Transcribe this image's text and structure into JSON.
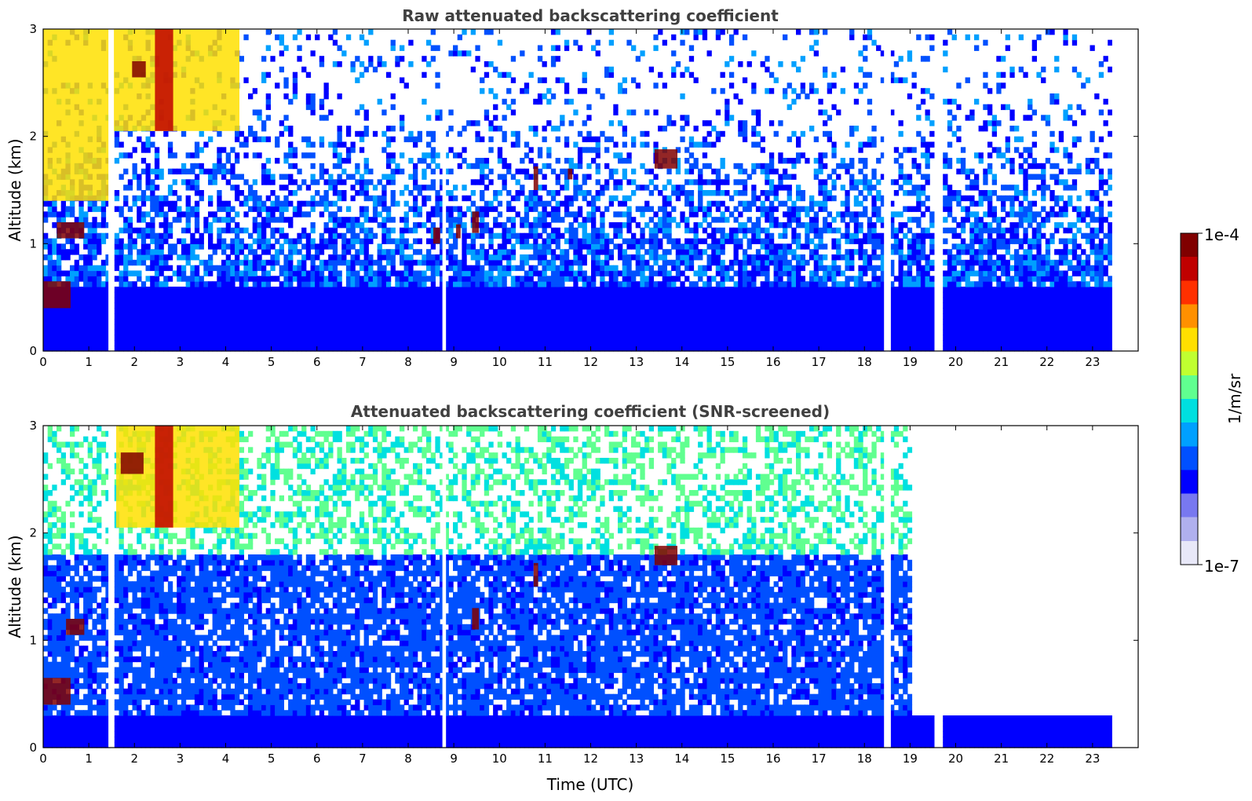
{
  "colors": {
    "background": "#ffffff",
    "title": "#404040",
    "colormap": [
      "#e8e8f8",
      "#b0b0ee",
      "#7878f0",
      "#0000ff",
      "#0050ff",
      "#00a0ff",
      "#00e0e0",
      "#60ff90",
      "#c0ff30",
      "#ffe000",
      "#ff9000",
      "#ff3000",
      "#c00000",
      "#800000"
    ]
  },
  "chart_data": [
    {
      "type": "heatmap",
      "title": "Raw attenuated backscattering coefficient",
      "xlabel": "",
      "ylabel": "Altitude (km)",
      "xlim": [
        0,
        24
      ],
      "ylim": [
        0,
        3
      ],
      "x_ticks": [
        "0",
        "1",
        "2",
        "3",
        "4",
        "5",
        "6",
        "7",
        "8",
        "9",
        "10",
        "11",
        "12",
        "13",
        "14",
        "15",
        "16",
        "17",
        "18",
        "19",
        "20",
        "21",
        "22",
        "23"
      ],
      "y_ticks": [
        "0",
        "1",
        "2",
        "3"
      ],
      "data_end_time": 23.43,
      "gaps": [
        [
          1.43,
          1.55
        ],
        [
          8.75,
          8.83
        ],
        [
          18.43,
          18.58
        ],
        [
          19.55,
          19.68
        ]
      ],
      "boundary_layer_top_km": 0.6,
      "features": [
        {
          "t0": 0.0,
          "t1": 1.45,
          "z0": 1.4,
          "z1": 3.0,
          "level": 0.68
        },
        {
          "t0": 1.45,
          "t1": 4.3,
          "z0": 2.05,
          "z1": 3.0,
          "level": 0.65
        },
        {
          "t0": 2.45,
          "t1": 2.85,
          "z0": 2.05,
          "z1": 3.0,
          "level": 0.9
        },
        {
          "t0": 1.95,
          "t1": 2.25,
          "z0": 2.55,
          "z1": 2.7,
          "level": 1.0
        },
        {
          "t0": 0.3,
          "t1": 0.9,
          "z0": 1.05,
          "z1": 1.2,
          "level": 1.0
        },
        {
          "t0": 0.0,
          "t1": 0.6,
          "z0": 0.4,
          "z1": 0.65,
          "level": 1.0
        },
        {
          "t0": 8.55,
          "t1": 8.7,
          "z0": 1.0,
          "z1": 1.15,
          "level": 0.95
        },
        {
          "t0": 9.05,
          "t1": 9.15,
          "z0": 1.05,
          "z1": 1.18,
          "level": 0.95
        },
        {
          "t0": 9.4,
          "t1": 9.55,
          "z0": 1.1,
          "z1": 1.3,
          "level": 1.0
        },
        {
          "t0": 10.75,
          "t1": 10.85,
          "z0": 1.5,
          "z1": 1.72,
          "level": 1.0
        },
        {
          "t0": 11.5,
          "t1": 11.6,
          "z0": 1.6,
          "z1": 1.7,
          "level": 0.95
        },
        {
          "t0": 13.4,
          "t1": 13.9,
          "z0": 1.7,
          "z1": 1.88,
          "level": 1.0
        }
      ],
      "colorbar": {
        "label": "1/m/sr",
        "min_label": "1e-7",
        "max_label": "1e-4"
      }
    },
    {
      "type": "heatmap",
      "title": "Attenuated backscattering coefficient (SNR-screened)",
      "xlabel": "Time (UTC)",
      "ylabel": "Altitude (km)",
      "xlim": [
        0,
        24
      ],
      "ylim": [
        0,
        3
      ],
      "x_ticks": [
        "0",
        "1",
        "2",
        "3",
        "4",
        "5",
        "6",
        "7",
        "8",
        "9",
        "10",
        "11",
        "12",
        "13",
        "14",
        "15",
        "16",
        "17",
        "18",
        "19",
        "20",
        "21",
        "22",
        "23"
      ],
      "y_ticks": [
        "0",
        "1",
        "2",
        "3"
      ],
      "data_end_time": 23.43,
      "gaps": [
        [
          1.43,
          1.55
        ],
        [
          8.75,
          8.83
        ],
        [
          18.43,
          18.58
        ],
        [
          19.55,
          19.68
        ]
      ],
      "boundary_layer_top_km": 0.3,
      "features": [
        {
          "t0": 1.6,
          "t1": 4.3,
          "z0": 2.05,
          "z1": 3.0,
          "level": 0.65
        },
        {
          "t0": 2.45,
          "t1": 2.85,
          "z0": 2.05,
          "z1": 3.0,
          "level": 0.9
        },
        {
          "t0": 1.7,
          "t1": 2.2,
          "z0": 2.55,
          "z1": 2.75,
          "level": 1.0
        },
        {
          "t0": 0.5,
          "t1": 0.9,
          "z0": 1.05,
          "z1": 1.2,
          "level": 1.0
        },
        {
          "t0": 0.0,
          "t1": 0.6,
          "z0": 0.4,
          "z1": 0.65,
          "level": 1.0
        },
        {
          "t0": 9.4,
          "t1": 9.55,
          "z0": 1.1,
          "z1": 1.3,
          "level": 1.0
        },
        {
          "t0": 10.75,
          "t1": 10.85,
          "z0": 1.5,
          "z1": 1.72,
          "level": 1.0
        },
        {
          "t0": 13.4,
          "t1": 13.9,
          "z0": 1.7,
          "z1": 1.88,
          "level": 1.0
        }
      ],
      "colorbar": {
        "label": "1/m/sr",
        "min_label": "1e-7",
        "max_label": "1e-4"
      }
    }
  ]
}
